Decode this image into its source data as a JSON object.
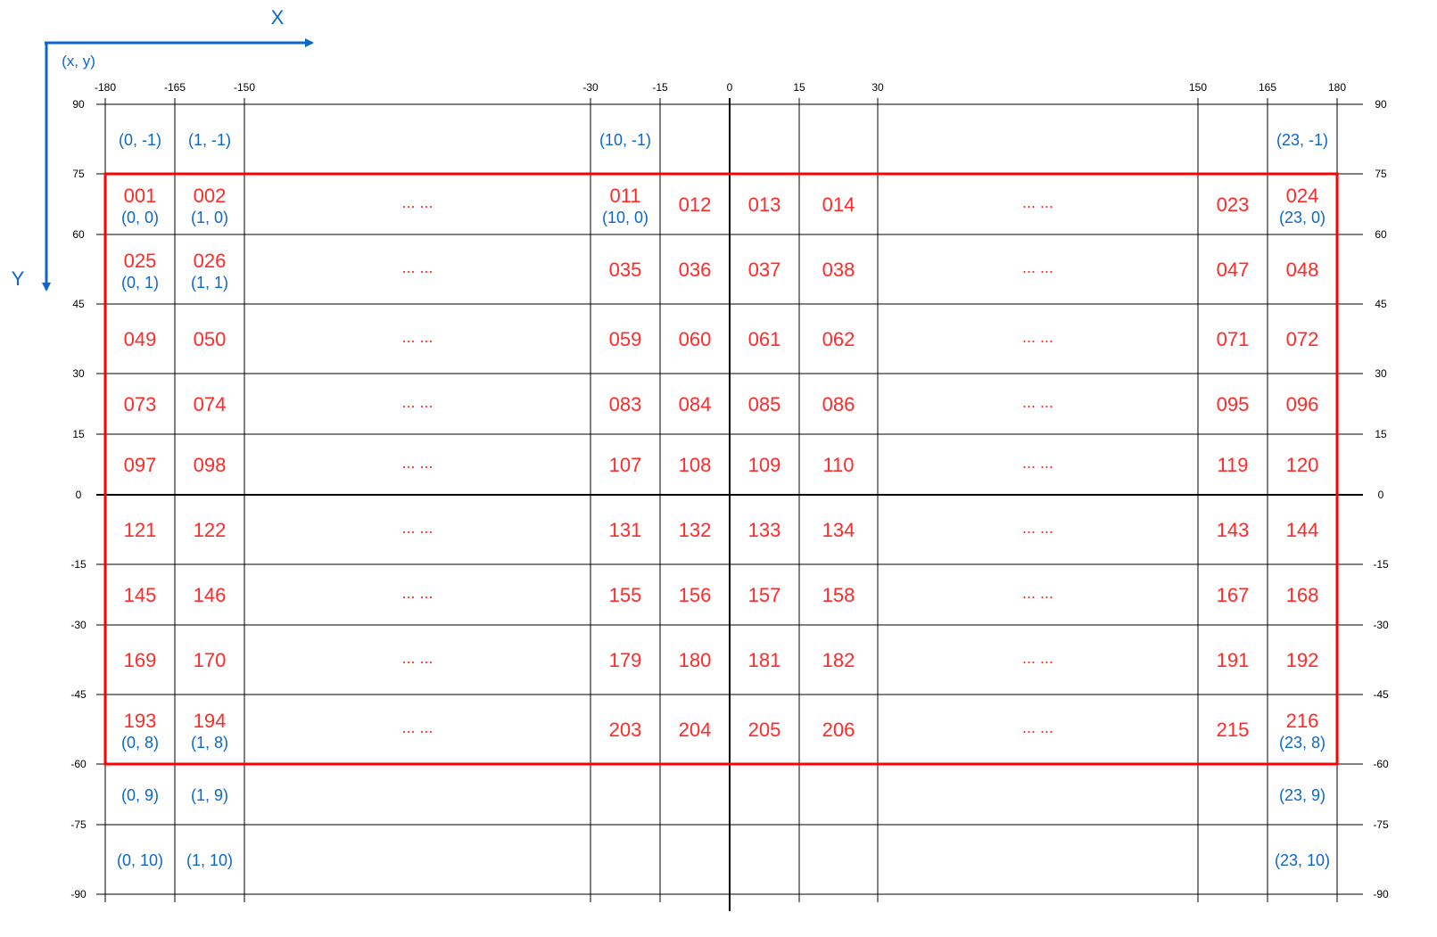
{
  "colors": {
    "grid": "#000000",
    "tile_id": "#ff2a2a",
    "coord": "#0d66c9",
    "highlight_border": "#ff0000",
    "axis": "#0d66c9"
  },
  "axes": {
    "x_title": "X",
    "y_title": "Y",
    "origin_label": "(x, y)",
    "x_arrow_icon": "arrow-right-icon",
    "y_arrow_icon": "arrow-down-icon"
  },
  "longitude_ticks": [
    "-180",
    "-165",
    "-150",
    "-30",
    "-15",
    "0",
    "15",
    "30",
    "150",
    "165",
    "180"
  ],
  "latitude_ticks": [
    "90",
    "75",
    "60",
    "45",
    "30",
    "15",
    "0",
    "-15",
    "-30",
    "-45",
    "-60",
    "-75",
    "-90"
  ],
  "column_groups": [
    "-180",
    "-165",
    "-150..-30",
    "-30",
    "-15",
    "0",
    "15",
    "30..150",
    "150",
    "165"
  ],
  "rows": [
    {
      "lat": "90..75",
      "cells": [
        "",
        "",
        "",
        "",
        "",
        "",
        "",
        "",
        "",
        ""
      ],
      "coords": [
        "(0, -1)",
        "(1, -1)",
        "",
        "(10, -1)",
        "",
        "",
        "",
        "",
        "",
        "(23, -1)"
      ]
    },
    {
      "lat": "75..60",
      "cells": [
        "001",
        "002",
        "... ...",
        "011",
        "012",
        "013",
        "014",
        "... ...",
        "023",
        "024"
      ],
      "coords": [
        "(0, 0)",
        "(1, 0)",
        "",
        "(10, 0)",
        "",
        "",
        "",
        "",
        "",
        "(23, 0)"
      ]
    },
    {
      "lat": "60..45",
      "cells": [
        "025",
        "026",
        "... ...",
        "035",
        "036",
        "037",
        "038",
        "... ...",
        "047",
        "048"
      ],
      "coords": [
        "(0, 1)",
        "(1, 1)",
        "",
        "",
        "",
        "",
        "",
        "",
        "",
        ""
      ]
    },
    {
      "lat": "45..30",
      "cells": [
        "049",
        "050",
        "... ...",
        "059",
        "060",
        "061",
        "062",
        "... ...",
        "071",
        "072"
      ],
      "coords": [
        "",
        "",
        "",
        "",
        "",
        "",
        "",
        "",
        "",
        ""
      ]
    },
    {
      "lat": "30..15",
      "cells": [
        "073",
        "074",
        "... ...",
        "083",
        "084",
        "085",
        "086",
        "... ...",
        "095",
        "096"
      ],
      "coords": [
        "",
        "",
        "",
        "",
        "",
        "",
        "",
        "",
        "",
        ""
      ]
    },
    {
      "lat": "15..0",
      "cells": [
        "097",
        "098",
        "... ...",
        "107",
        "108",
        "109",
        "110",
        "... ...",
        "119",
        "120"
      ],
      "coords": [
        "",
        "",
        "",
        "",
        "",
        "",
        "",
        "",
        "",
        ""
      ]
    },
    {
      "lat": "0..-15",
      "cells": [
        "121",
        "122",
        "... ...",
        "131",
        "132",
        "133",
        "134",
        "... ...",
        "143",
        "144"
      ],
      "coords": [
        "",
        "",
        "",
        "",
        "",
        "",
        "",
        "",
        "",
        ""
      ]
    },
    {
      "lat": "-15..-30",
      "cells": [
        "145",
        "146",
        "... ...",
        "155",
        "156",
        "157",
        "158",
        "... ...",
        "167",
        "168"
      ],
      "coords": [
        "",
        "",
        "",
        "",
        "",
        "",
        "",
        "",
        "",
        ""
      ]
    },
    {
      "lat": "-30..-45",
      "cells": [
        "169",
        "170",
        "... ...",
        "179",
        "180",
        "181",
        "182",
        "... ...",
        "191",
        "192"
      ],
      "coords": [
        "",
        "",
        "",
        "",
        "",
        "",
        "",
        "",
        "",
        ""
      ]
    },
    {
      "lat": "-45..-60",
      "cells": [
        "193",
        "194",
        "... ...",
        "203",
        "204",
        "205",
        "206",
        "... ...",
        "215",
        "216"
      ],
      "coords": [
        "(0, 8)",
        "(1, 8)",
        "",
        "",
        "",
        "",
        "",
        "",
        "",
        "(23, 8)"
      ]
    },
    {
      "lat": "-60..-75",
      "cells": [
        "",
        "",
        "",
        "",
        "",
        "",
        "",
        "",
        "",
        ""
      ],
      "coords": [
        "(0, 9)",
        "(1, 9)",
        "",
        "",
        "",
        "",
        "",
        "",
        "",
        "(23, 9)"
      ]
    },
    {
      "lat": "-75..-90",
      "cells": [
        "",
        "",
        "",
        "",
        "",
        "",
        "",
        "",
        "",
        ""
      ],
      "coords": [
        "(0, 10)",
        "(1, 10)",
        "",
        "",
        "",
        "",
        "",
        "",
        "",
        "(23, 10)"
      ]
    }
  ],
  "highlight": {
    "lon_range": [
      "-180",
      "180"
    ],
    "lat_range": [
      "75",
      "-60"
    ]
  }
}
